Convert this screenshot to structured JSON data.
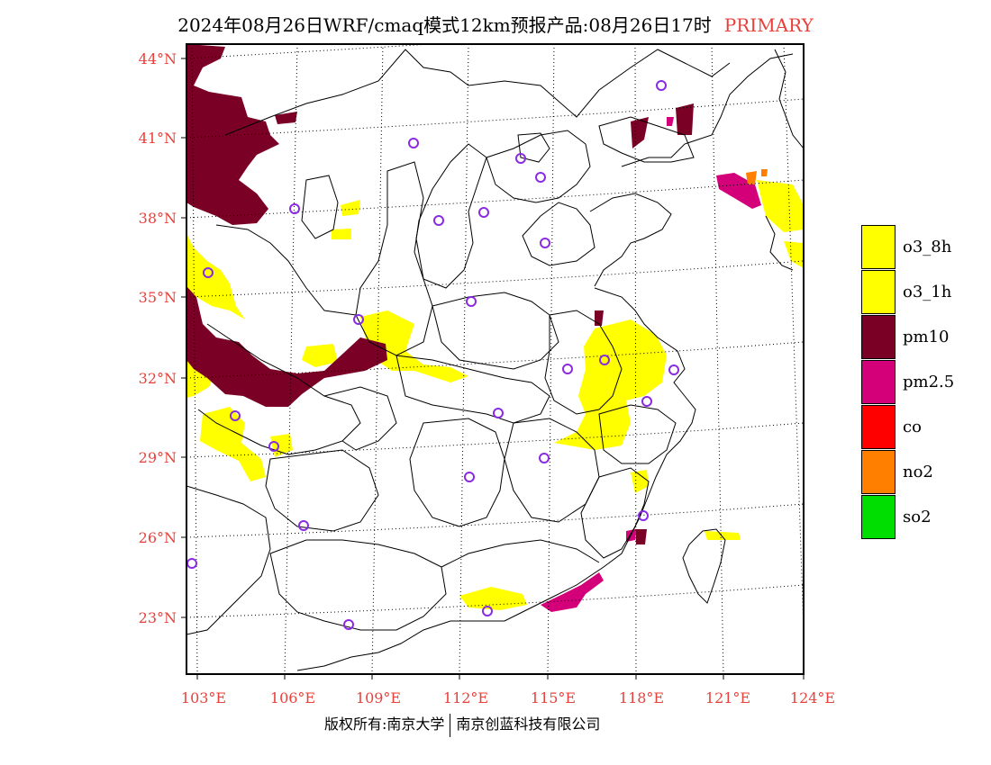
{
  "title": {
    "main": "2024年08月26日WRF/cmaq模式12km预报产品:08月26日17时",
    "tag": "PRIMARY"
  },
  "map": {
    "lat_labels": [
      "44°N",
      "41°N",
      "38°N",
      "35°N",
      "32°N",
      "29°N",
      "26°N",
      "23°N"
    ],
    "lon_labels": [
      "103°E",
      "106°E",
      "109°E",
      "112°E",
      "115°E",
      "118°E",
      "121°E",
      "124°E"
    ]
  },
  "legend": [
    {
      "label": "o3_8h",
      "color": "#ffff00"
    },
    {
      "label": "o3_1h",
      "color": "#ffff00"
    },
    {
      "label": "pm10",
      "color": "#7a0026"
    },
    {
      "label": "pm2.5",
      "color": "#d4007a"
    },
    {
      "label": "co",
      "color": "#ff0000"
    },
    {
      "label": "no2",
      "color": "#ff7f00"
    },
    {
      "label": "so2",
      "color": "#00dd00"
    }
  ],
  "copyright": {
    "left": "版权所有:南京大学",
    "right": "南京创蓝科技有限公司"
  },
  "colors": {
    "label_red": "#e8403a",
    "frame": "#000000"
  },
  "station_marker": "purple-circle"
}
